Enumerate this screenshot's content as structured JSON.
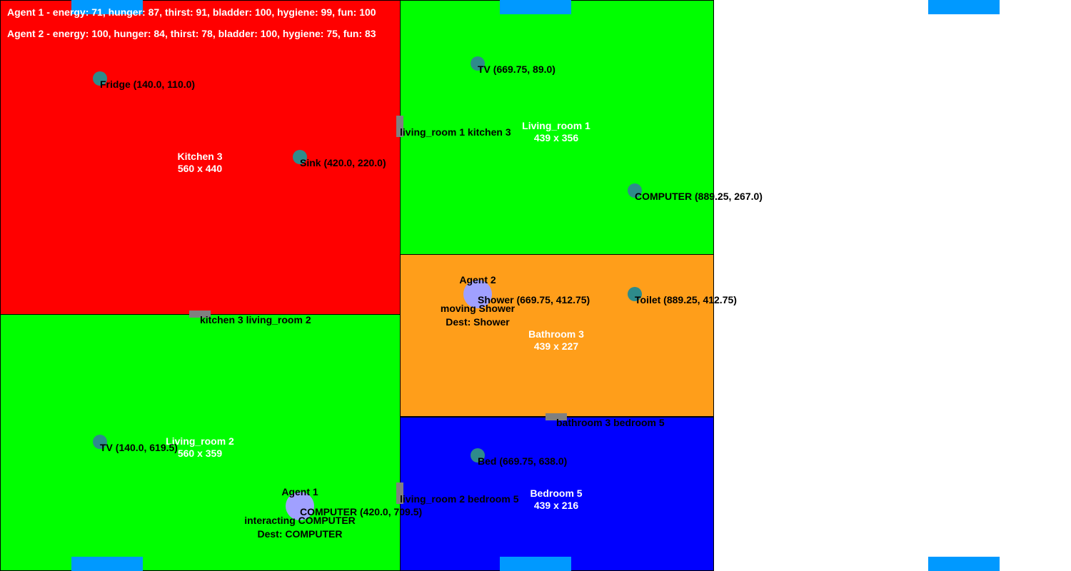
{
  "colors": {
    "kitchen": "#ff0000",
    "living_room": "#00ff00",
    "bathroom": "#ff9e1a",
    "bedroom": "#0000ff",
    "object": "#2e8b8b",
    "door": "#808080",
    "agent": "#a0a0ff",
    "marker": "#0099ff"
  },
  "status": {
    "agent1": "Agent 1 - energy: 71, hunger: 87, thirst: 91, bladder: 100, hygiene: 99, fun: 100",
    "agent2": "Agent 2 - energy: 100, hunger: 84, thirst: 78, bladder: 100, hygiene: 75, fun: 83"
  },
  "rooms": {
    "kitchen": {
      "name": "Kitchen 3",
      "size": "560 x 440"
    },
    "living_room_1": {
      "name": "Living_room 1",
      "size": "439 x 356"
    },
    "bathroom": {
      "name": "Bathroom 3",
      "size": "439 x 227"
    },
    "living_room_2": {
      "name": "Living_room 2",
      "size": "560 x 359"
    },
    "bedroom": {
      "name": "Bedroom 5",
      "size": "439 x 216"
    }
  },
  "objects": {
    "fridge": "Fridge (140.0, 110.0)",
    "sink": "Sink (420.0, 220.0)",
    "tv1": "TV (669.75, 89.0)",
    "computer1": "COMPUTER (889.25, 267.0)",
    "shower": "Shower (669.75, 412.75)",
    "toilet": "Toilet (889.25, 412.75)",
    "tv2": "TV (140.0, 619.5)",
    "computer2": "COMPUTER (420.0, 709.5)",
    "bed": "Bed (669.75, 638.0)"
  },
  "doors": {
    "lr1_kitchen": "living_room 1 kitchen 3",
    "kitchen_lr2": "kitchen 3 living_room 2",
    "bath_bed": "bathroom 3 bedroom 5",
    "lr2_bed": "living_room 2 bedroom 5"
  },
  "agents": {
    "agent1": {
      "name": "Agent 1",
      "action": "interacting COMPUTER",
      "dest": "Dest: COMPUTER"
    },
    "agent2": {
      "name": "Agent 2",
      "action": "moving Shower",
      "dest": "Dest: Shower"
    }
  }
}
